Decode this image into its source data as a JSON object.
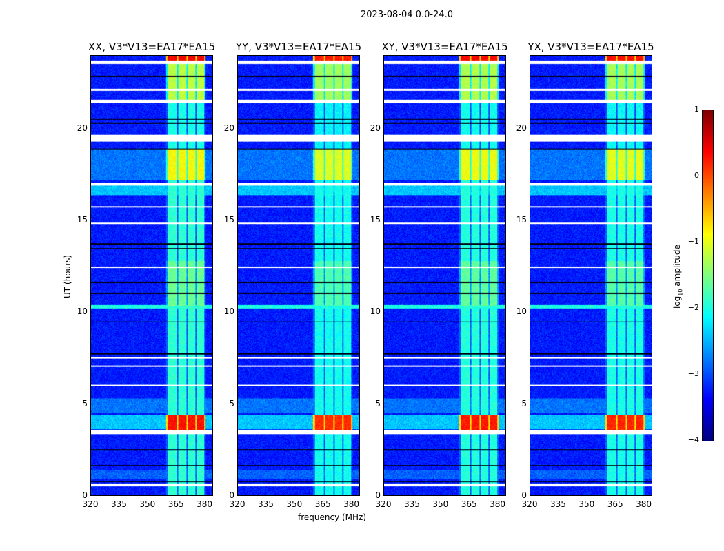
{
  "chart_data": {
    "type": "heatmap",
    "title": "2023-08-04 0.0-24.0",
    "xlabel": "frequency (MHz)",
    "ylabel": "UT (hours)",
    "xlim": [
      320,
      384.5
    ],
    "ylim": [
      0,
      24
    ],
    "xticks": [
      "320",
      "335",
      "350",
      "365",
      "380"
    ],
    "yticks": [
      "0",
      "5",
      "10",
      "15",
      "20"
    ],
    "grid": false,
    "panels": [
      {
        "title": "XX, V3*V13=EA17*EA15",
        "offset": 0.0
      },
      {
        "title": "YY, V3*V13=EA17*EA15",
        "offset": -0.15
      },
      {
        "title": "XY, V3*V13=EA17*EA15",
        "offset": -0.05
      },
      {
        "title": "YX, V3*V13=EA17*EA15",
        "offset": -0.1
      }
    ],
    "colorbar": {
      "label": "log10 amplitude",
      "label_main": "log",
      "label_sub": "10",
      "label_rest": " amplitude",
      "range": [
        -4,
        1
      ],
      "ticks": [
        "1",
        "0",
        "−1",
        "−2",
        "−3",
        "−4"
      ],
      "colormap": "jet"
    },
    "background_level": -3.25,
    "rfi_channels_mhz": [
      [
        361,
        365.6
      ],
      [
        366.3,
        370.6
      ],
      [
        371.3,
        375.6
      ],
      [
        376.3,
        380.3
      ]
    ],
    "rfi_levels_by_time": [
      {
        "t": [
          0,
          3.4
        ],
        "level": -1.9
      },
      {
        "t": [
          3.5,
          4.4
        ],
        "level": 0.3
      },
      {
        "t": [
          4.4,
          10.3
        ],
        "level": -1.9
      },
      {
        "t": [
          10.3,
          12.8
        ],
        "level": -1.6
      },
      {
        "t": [
          12.8,
          17.2
        ],
        "level": -1.9
      },
      {
        "t": [
          17.2,
          18.9
        ],
        "level": -0.9
      },
      {
        "t": [
          18.9,
          21.5
        ],
        "level": -2.0
      },
      {
        "t": [
          21.6,
          23.6
        ],
        "level": -1.2
      },
      {
        "t": [
          23.7,
          24
        ],
        "level": 0.4
      }
    ],
    "elevated_background_times": [
      [
        3.6,
        4.4,
        -2.4
      ],
      [
        4.5,
        5.3,
        -2.8
      ],
      [
        16.4,
        17.0,
        -2.4
      ],
      [
        17.2,
        18.9,
        -2.8
      ],
      [
        10.2,
        10.4,
        -2.0
      ],
      [
        0.9,
        1.4,
        -2.9
      ]
    ],
    "flagged_times": [
      [
        0.5,
        0.62
      ],
      [
        3.35,
        3.55
      ],
      [
        5.95,
        6.05
      ],
      [
        7.0,
        7.08
      ],
      [
        7.45,
        7.55
      ],
      [
        12.4,
        12.5
      ],
      [
        14.8,
        14.9
      ],
      [
        15.7,
        15.8
      ],
      [
        16.9,
        17.05
      ],
      [
        19.3,
        19.7
      ],
      [
        21.4,
        21.6
      ],
      [
        22.1,
        22.2
      ],
      [
        23.55,
        23.75
      ]
    ],
    "dark_times": [
      [
        0.7,
        0.75
      ],
      [
        1.6,
        1.65
      ],
      [
        2.45,
        2.5
      ],
      [
        7.7,
        7.75
      ],
      [
        9.45,
        9.5
      ],
      [
        11.0,
        11.05
      ],
      [
        11.6,
        11.65
      ],
      [
        13.45,
        13.5
      ],
      [
        13.7,
        13.75
      ],
      [
        18.85,
        18.95
      ],
      [
        20.3,
        20.35
      ],
      [
        20.5,
        20.55
      ],
      [
        22.85,
        22.9
      ]
    ]
  }
}
